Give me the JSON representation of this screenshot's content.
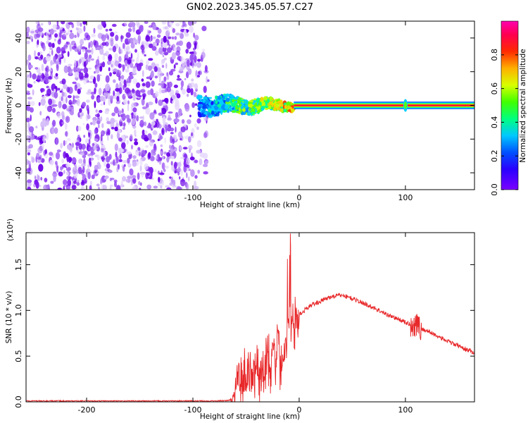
{
  "figure": {
    "title": "GN02.2023.345.05.57.C27"
  },
  "chart_data": [
    {
      "type": "heatmap",
      "xlabel": "Height of straight line (km)",
      "ylabel": "Frequency (Hz)",
      "xlim": [
        -257,
        165
      ],
      "ylim": [
        -50,
        50
      ],
      "xticks": [
        -200,
        -100,
        0,
        100
      ],
      "yticks": [
        -40,
        -20,
        0,
        20,
        40
      ],
      "colorbar": {
        "label": "Normalized spectral amplitude",
        "range": [
          0,
          1
        ],
        "ticks": [
          "0.0",
          "0.2",
          "0.4",
          "0.6",
          "0.8"
        ],
        "colormap": "rainbow (violet → blue → cyan → green → yellow → red → magenta)"
      },
      "regions": [
        {
          "name": "broadband noise",
          "x_range": [
            -257,
            -85
          ],
          "freq_range": [
            -50,
            50
          ],
          "amplitude": "low (violet/purple)"
        },
        {
          "name": "transition band",
          "x_range": [
            -95,
            -5
          ],
          "freq_range": [
            -6,
            6
          ],
          "amplitude": "mixed (blue/cyan/green, some yellow)"
        },
        {
          "name": "signal line",
          "x_range": [
            -5,
            165
          ],
          "freq_range": [
            -1.5,
            1.5
          ],
          "amplitude": "high (red core, green edges)"
        }
      ],
      "annotations": [
        {
          "x": 100,
          "note": "brief broadening of the signal line"
        }
      ]
    },
    {
      "type": "line",
      "xlabel": "Height of straight line (km)",
      "ylabel": "SNR (10 * v/v)",
      "y_multiplier": "(x10⁴)",
      "xlim": [
        -257,
        165
      ],
      "ylim": [
        0,
        1.85
      ],
      "xticks": [
        -200,
        -100,
        0,
        100
      ],
      "yticks": [
        "0.0",
        "0.5",
        "1.0",
        "1.5"
      ],
      "color": "#e8282a",
      "series": [
        {
          "x": [
            -257,
            -200,
            -150,
            -100,
            -75,
            -63,
            -60,
            -57,
            -55,
            -50,
            -45,
            -40,
            -35,
            -30,
            -27,
            -25,
            -22,
            -20,
            -18,
            -15,
            -12,
            -10,
            -9,
            -8,
            -5,
            0,
            10,
            20,
            30,
            40,
            50,
            60,
            70,
            80,
            90,
            100,
            108,
            110,
            113,
            120,
            130,
            140,
            150,
            160,
            165
          ],
          "y": [
            0.01,
            0.01,
            0.01,
            0.01,
            0.01,
            0.02,
            0.1,
            0.35,
            0.2,
            0.3,
            0.25,
            0.35,
            0.3,
            0.5,
            0.3,
            0.7,
            0.4,
            0.9,
            0.3,
            0.55,
            0.6,
            0.8,
            1.05,
            0.75,
            0.85,
            0.95,
            1.05,
            1.1,
            1.15,
            1.17,
            1.13,
            1.08,
            1.03,
            0.97,
            0.92,
            0.87,
            0.83,
            0.88,
            0.8,
            0.78,
            0.72,
            0.66,
            0.61,
            0.56,
            0.54
          ]
        }
      ]
    }
  ]
}
